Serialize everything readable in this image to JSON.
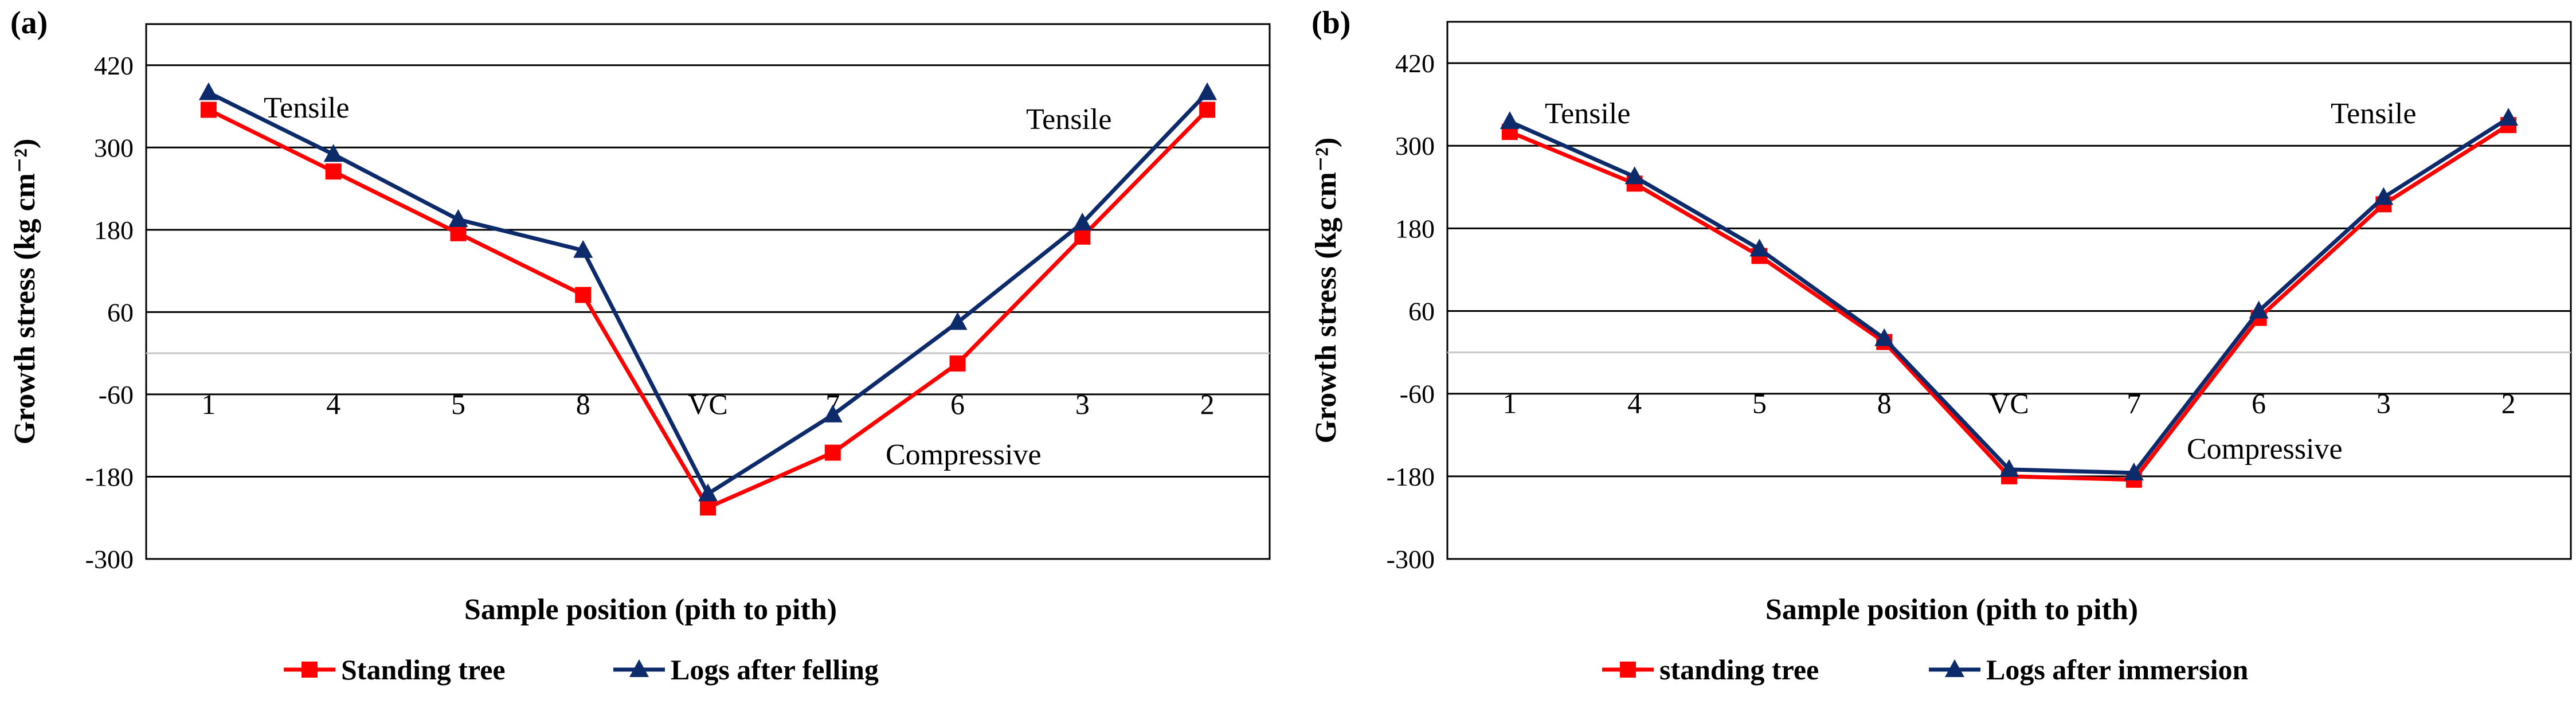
{
  "chart_data": [
    {
      "type": "line",
      "panel_label": "(a)",
      "categories": [
        "1",
        "4",
        "5",
        "8",
        "VC",
        "7",
        "6",
        "3",
        "2"
      ],
      "series": [
        {
          "name": "Standing tree",
          "color": "#ff0000",
          "marker": "square",
          "values": [
            355,
            265,
            175,
            85,
            -225,
            -145,
            -15,
            170,
            355
          ]
        },
        {
          "name": "Logs after felling",
          "color": "#0d2a6b",
          "marker": "triangle",
          "values": [
            380,
            290,
            195,
            150,
            -205,
            -90,
            45,
            190,
            380
          ]
        }
      ],
      "xlabel": "Sample position (pith to pith)",
      "ylabel": "Growth stress (kg cm⁻²)",
      "yticks": [
        "420",
        "300",
        "180",
        "60",
        "-60",
        "-180",
        "-300"
      ],
      "ylim": [
        -300,
        480
      ],
      "reference_line": 0,
      "grid": true,
      "legend": "bottom",
      "annotations": {
        "left": "Tensile",
        "right": "Tensile",
        "bottom": "Compressive"
      }
    },
    {
      "type": "line",
      "panel_label": "(b)",
      "categories": [
        "1",
        "4",
        "5",
        "8",
        "VC",
        "7",
        "6",
        "3",
        "2"
      ],
      "series": [
        {
          "name": "standing tree",
          "color": "#ff0000",
          "marker": "square",
          "values": [
            320,
            245,
            140,
            15,
            -180,
            -185,
            50,
            215,
            330
          ]
        },
        {
          "name": "Logs after immersion",
          "color": "#0d2a6b",
          "marker": "triangle",
          "values": [
            335,
            255,
            150,
            20,
            -170,
            -175,
            60,
            225,
            340
          ]
        }
      ],
      "xlabel": "Sample position (pith to pith)",
      "ylabel": "Growth stress (kg cm⁻²)",
      "yticks": [
        "420",
        "300",
        "180",
        "60",
        "-60",
        "-180",
        "-300"
      ],
      "ylim": [
        -300,
        480
      ],
      "reference_line": 0,
      "grid": true,
      "legend": "bottom",
      "annotations": {
        "left": "Tensile",
        "right": "Tensile",
        "bottom": "Compressive"
      }
    }
  ]
}
